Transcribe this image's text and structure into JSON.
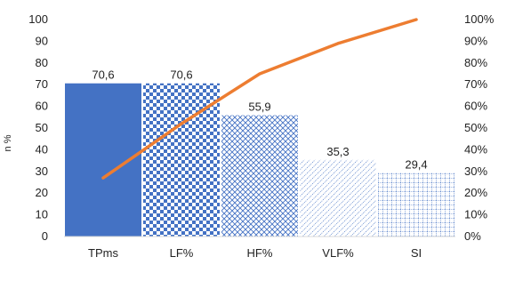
{
  "chart_data": {
    "type": "bar",
    "categories": [
      "TPms",
      "LF%",
      "HF%",
      "VLF%",
      "SI"
    ],
    "series": [
      {
        "type": "bar",
        "axis": "left",
        "values": [
          70.6,
          70.6,
          55.9,
          35.3,
          29.4
        ],
        "data_labels": [
          "70,6",
          "70,6",
          "55,9",
          "35,3",
          "29,4"
        ]
      },
      {
        "type": "line",
        "axis": "right",
        "values": [
          27,
          52,
          75,
          89,
          100
        ]
      }
    ],
    "ylabel": "n %",
    "ylim": [
      0,
      100
    ],
    "y_ticks": [
      "0",
      "10",
      "20",
      "30",
      "40",
      "50",
      "60",
      "70",
      "80",
      "90",
      "100"
    ],
    "y2lim": [
      0,
      100
    ],
    "y2_ticks": [
      "0%",
      "10%",
      "20%",
      "30%",
      "40%",
      "50%",
      "60%",
      "70%",
      "80%",
      "90%",
      "100%"
    ],
    "bar_fills": [
      "solid",
      "checker",
      "diamond-lattice",
      "dotted-diagonal",
      "grid"
    ],
    "colors": {
      "bar": "#4472c4",
      "line": "#ed7d31",
      "axis": "#d9d9d9"
    },
    "grid": false
  }
}
